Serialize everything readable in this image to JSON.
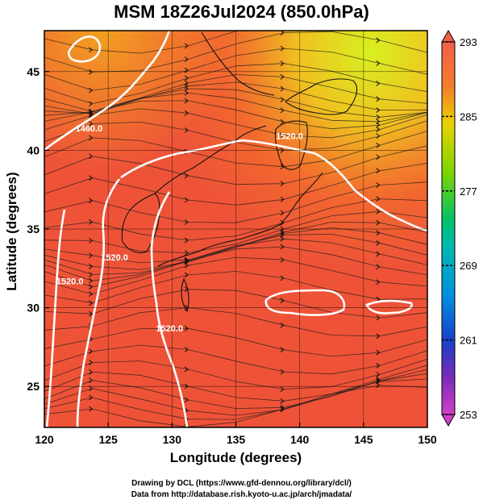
{
  "chart_data": {
    "type": "heatmap",
    "title": "MSM 18Z26Jul2024 (850.0hPa)",
    "xlabel": "Longitude (degrees)",
    "ylabel": "Latitude  (degrees)",
    "xlim": [
      120,
      150
    ],
    "ylim": [
      22.4,
      47.6
    ],
    "x_ticks": [
      120,
      125,
      130,
      135,
      140,
      145,
      150
    ],
    "y_ticks": [
      25,
      30,
      35,
      40,
      45
    ],
    "colorbar": {
      "range": [
        253,
        293
      ],
      "ticks": [
        293,
        285,
        277,
        269,
        261,
        253
      ],
      "extend": "both"
    },
    "contour_labels": [
      {
        "text": "1460.0",
        "lon": 123.5,
        "lat": 41.2
      },
      {
        "text": "1520.0",
        "lon": 139.2,
        "lat": 40.7
      },
      {
        "text": "1520.0",
        "lon": 122.0,
        "lat": 31.5
      },
      {
        "text": "1520.0",
        "lon": 125.5,
        "lat": 33.0
      },
      {
        "text": "1520.0",
        "lon": 129.8,
        "lat": 28.5
      }
    ],
    "grid": true
  },
  "credits": {
    "line1": "Drawing by DCL (https://www.gfd-dennou.org/library/dcl/)",
    "line2": "Data from http://database.rish.kyoto-u.ac.jp/arch/jmadata/"
  }
}
